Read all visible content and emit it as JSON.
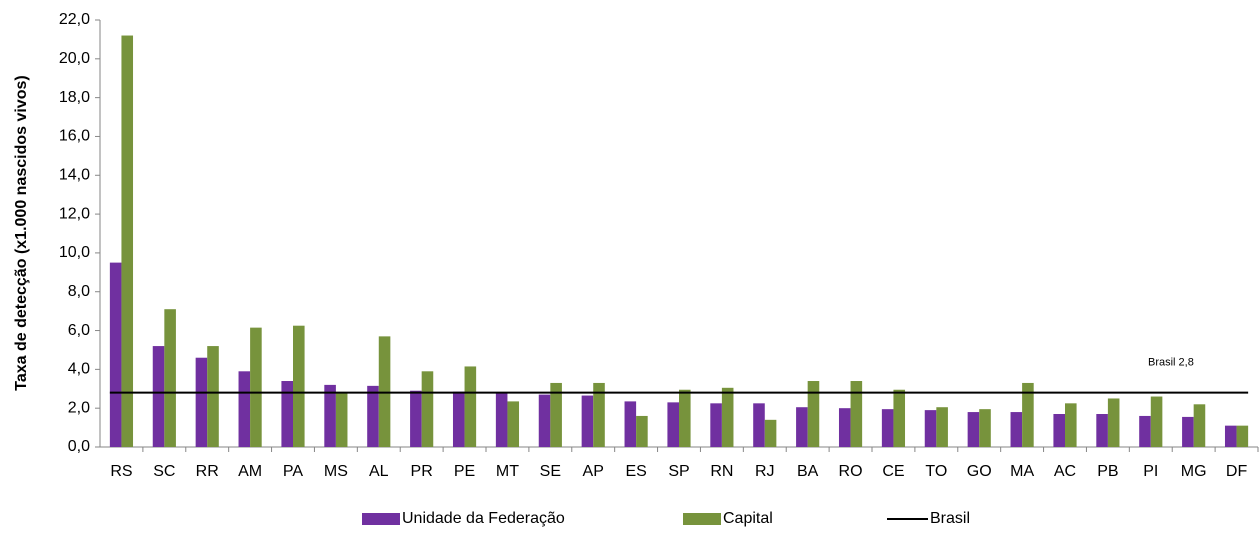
{
  "chart_data": {
    "type": "bar",
    "y_label": "Taxa de detecção (x1.000 nascidos vivos)",
    "categories": [
      "RS",
      "SC",
      "RR",
      "AM",
      "PA",
      "MS",
      "AL",
      "PR",
      "PE",
      "MT",
      "SE",
      "AP",
      "ES",
      "SP",
      "RN",
      "RJ",
      "BA",
      "RO",
      "CE",
      "TO",
      "GO",
      "MA",
      "AC",
      "PB",
      "PI",
      "MG",
      "DF"
    ],
    "series": [
      {
        "name": "Unidade da Federação",
        "color": "#7030a0",
        "values": [
          9.5,
          5.2,
          4.6,
          3.9,
          3.4,
          3.2,
          3.15,
          2.9,
          2.85,
          2.8,
          2.7,
          2.65,
          2.35,
          2.3,
          2.25,
          2.25,
          2.05,
          2.0,
          1.95,
          1.9,
          1.8,
          1.8,
          1.7,
          1.7,
          1.6,
          1.55,
          1.1
        ]
      },
      {
        "name": "Capital",
        "color": "#77933c",
        "values": [
          21.2,
          7.1,
          5.2,
          6.15,
          6.25,
          2.8,
          5.7,
          3.9,
          4.15,
          2.35,
          3.3,
          3.3,
          1.6,
          2.95,
          3.05,
          1.4,
          3.4,
          3.4,
          2.95,
          2.05,
          1.95,
          3.3,
          2.25,
          2.5,
          2.6,
          2.2,
          1.1
        ]
      }
    ],
    "reference_line": {
      "name": "Brasil",
      "value": 2.8,
      "label": "Brasil  2,8",
      "color": "#000000"
    },
    "ylim": [
      0,
      22
    ],
    "yticks": [
      {
        "value": 0,
        "label": "0,0"
      },
      {
        "value": 2,
        "label": "2,0"
      },
      {
        "value": 4,
        "label": "4,0"
      },
      {
        "value": 6,
        "label": "6,0"
      },
      {
        "value": 8,
        "label": "8,0"
      },
      {
        "value": 10,
        "label": "10,0"
      },
      {
        "value": 12,
        "label": "12,0"
      },
      {
        "value": 14,
        "label": "14,0"
      },
      {
        "value": 16,
        "label": "16,0"
      },
      {
        "value": 18,
        "label": "18,0"
      },
      {
        "value": 20,
        "label": "20,0"
      },
      {
        "value": 22,
        "label": "22,0"
      }
    ],
    "grid": false,
    "legend": "bottom"
  }
}
